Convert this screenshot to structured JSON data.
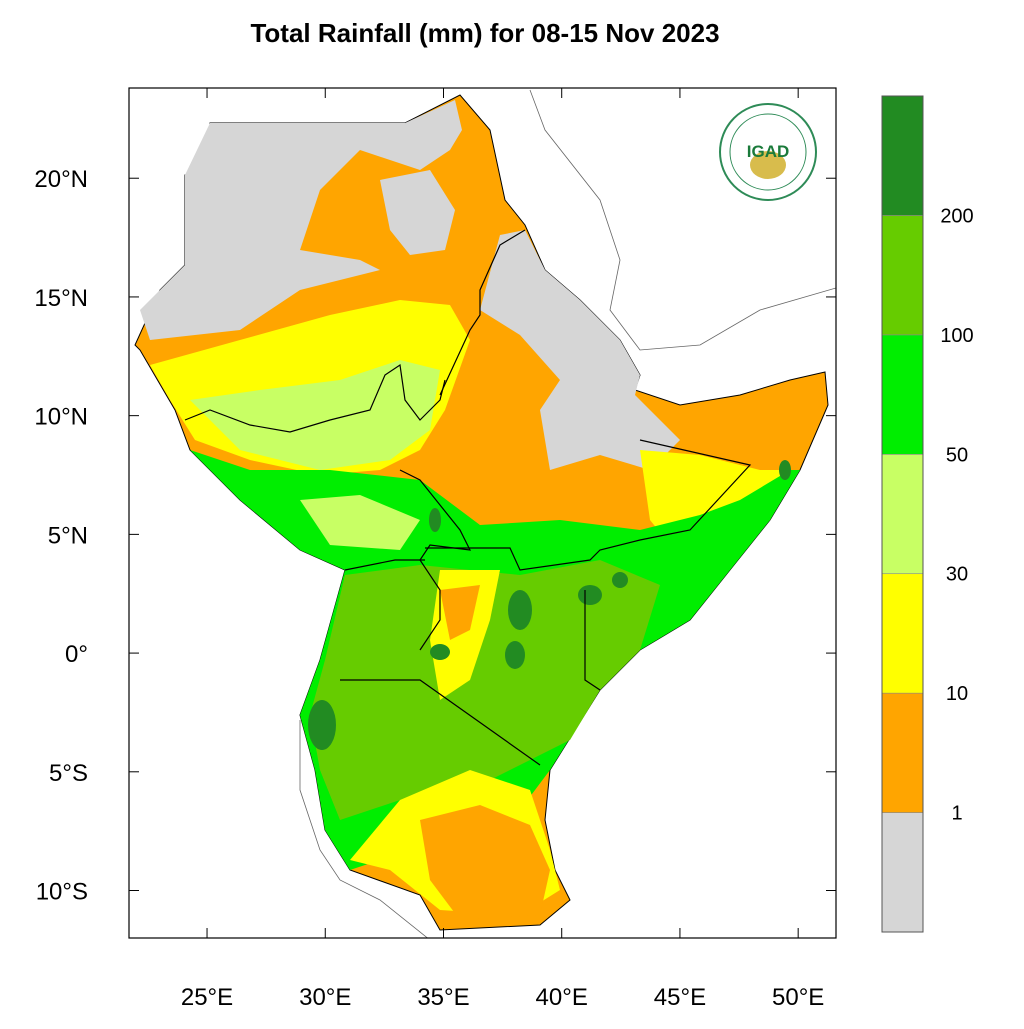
{
  "title": "Total Rainfall (mm) for 08-15 Nov 2023",
  "map": {
    "lonlim": [
      21.7,
      51.6
    ],
    "latlim": [
      -12,
      23.8
    ],
    "lon_ticks": [
      {
        "value": 25,
        "label": "25°E"
      },
      {
        "value": 30,
        "label": "30°E"
      },
      {
        "value": 35,
        "label": "35°E"
      },
      {
        "value": 40,
        "label": "40°E"
      },
      {
        "value": 45,
        "label": "45°E"
      },
      {
        "value": 50,
        "label": "50°E"
      }
    ],
    "lat_ticks": [
      {
        "value": 20,
        "label": "20°N"
      },
      {
        "value": 15,
        "label": "15°N"
      },
      {
        "value": 10,
        "label": "10°N"
      },
      {
        "value": 5,
        "label": "5°N"
      },
      {
        "value": 0,
        "label": "0°"
      },
      {
        "value": -5,
        "label": "5°S"
      },
      {
        "value": -10,
        "label": "10°S"
      }
    ]
  },
  "legend": {
    "colors": [
      "#d6d6d6",
      "#ffa500",
      "#ffff00",
      "#c8ff64",
      "#00ee00",
      "#66cc00",
      "#228b22"
    ],
    "levels": [
      "1",
      "10",
      "30",
      "50",
      "100",
      "200"
    ]
  },
  "logo": {
    "text": "IGAD"
  }
}
